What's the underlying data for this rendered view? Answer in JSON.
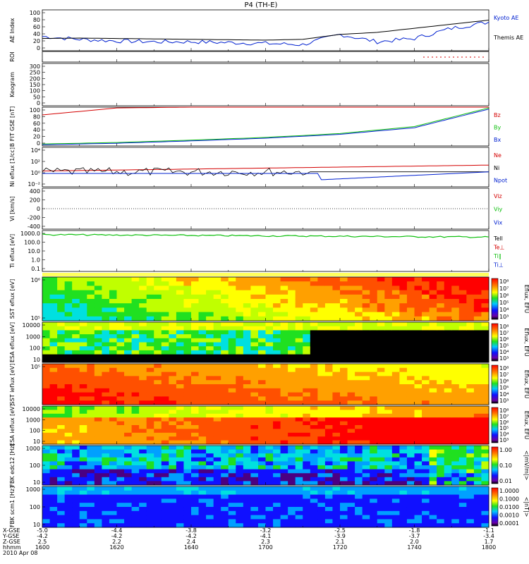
{
  "title": "P4 (TH-E)",
  "colors": {
    "red": "#d40000",
    "green": "#10c010",
    "blue": "#0020d0",
    "black": "#000000"
  },
  "x_ticks": [
    "1600",
    "1620",
    "1640",
    "1700",
    "1720",
    "1740",
    "1800"
  ],
  "footer": {
    "row_labels": [
      "X-GSE",
      "Y-GSE",
      "Z-GSE",
      "hhmm",
      "2010 Apr 08"
    ],
    "columns": [
      [
        "-5.0",
        "-4.2",
        "2.5",
        "1600"
      ],
      [
        "-4.4",
        "-4.2",
        "2.2",
        "1620"
      ],
      [
        "-3.8",
        "-4.2",
        "2.4",
        "1640"
      ],
      [
        "-3.2",
        "-4.1",
        "2.3",
        "1700"
      ],
      [
        "-2.5",
        "-3.9",
        "2.1",
        "1720"
      ],
      [
        "-1.8",
        "-3.7",
        "2.0",
        "1740"
      ],
      [
        "-1.1",
        "-3.4",
        "1.7",
        "1800"
      ]
    ]
  },
  "chart_data": [
    {
      "type": "line",
      "ylabel": "AE Index",
      "ylim": [
        0,
        100
      ],
      "ytick_labels": [
        "100",
        "80",
        "60",
        "40",
        "20",
        "0"
      ],
      "x": [
        "1600",
        "1610",
        "1620",
        "1630",
        "1640",
        "1650",
        "1700",
        "1710",
        "1720",
        "1730",
        "1740",
        "1750",
        "1800"
      ],
      "series": [
        {
          "name": "Kyoto AE",
          "color": "blue",
          "values": [
            35,
            28,
            24,
            22,
            22,
            20,
            18,
            15,
            40,
            22,
            30,
            55,
            70
          ]
        },
        {
          "name": "Themis AE",
          "color": "black",
          "values": [
            30,
            31,
            30,
            29,
            28,
            27,
            26,
            28,
            40,
            45,
            55,
            65,
            75
          ]
        }
      ]
    },
    {
      "type": "line",
      "ylabel": "ROI",
      "ytick_labels": [],
      "series": []
    },
    {
      "type": "line",
      "ylabel": "Keogram",
      "ylim": [
        0,
        300
      ],
      "ytick_labels": [
        "300",
        "250",
        "200",
        "150",
        "100",
        "50",
        "0"
      ],
      "series": []
    },
    {
      "type": "line",
      "ylabel": "B FIT GSE [nT]",
      "ylim": [
        0,
        100
      ],
      "ytick_labels": [
        "100",
        "80",
        "60",
        "40",
        "20",
        "0"
      ],
      "x": [
        "1600",
        "1620",
        "1640",
        "1700",
        "1720",
        "1740",
        "1800"
      ],
      "series": [
        {
          "name": "Bz",
          "color": "red",
          "values": [
            80,
            98,
            100,
            100,
            100,
            100,
            100
          ]
        },
        {
          "name": "By",
          "color": "green",
          "values": [
            5,
            9,
            15,
            22,
            32,
            50,
            98
          ]
        },
        {
          "name": "Bx",
          "color": "blue",
          "values": [
            3,
            7,
            13,
            20,
            30,
            47,
            95
          ]
        }
      ]
    },
    {
      "type": "line",
      "ylabel": "Ni eflux [1/cc]",
      "ytick_labels": [
        "10⁴",
        "10²",
        "10⁰",
        "10⁻²"
      ],
      "series": [
        {
          "name": "Ne",
          "color": "red"
        },
        {
          "name": "Ni",
          "color": "black"
        },
        {
          "name": "Npot",
          "color": "blue"
        }
      ]
    },
    {
      "type": "line",
      "ylabel": "Vi [km/s]",
      "ylim": [
        -500,
        500
      ],
      "ytick_labels": [
        "400",
        "200",
        "0",
        "-200",
        "-400"
      ],
      "series": [
        {
          "name": "Viz",
          "color": "red"
        },
        {
          "name": "Viy",
          "color": "green"
        },
        {
          "name": "Vix",
          "color": "blue"
        }
      ]
    },
    {
      "type": "line",
      "ylabel": "Ti eflux [eV]",
      "ytick_labels": [
        "1000.0",
        "100.0",
        "10.0",
        "1.0",
        "0.1"
      ],
      "series": [
        {
          "name": "Tell",
          "color": "black"
        },
        {
          "name": "Te⊥",
          "color": "red"
        },
        {
          "name": "Ti∥",
          "color": "green"
        },
        {
          "name": "Ti⊥",
          "color": "blue"
        }
      ]
    },
    {
      "type": "heatmap",
      "ylabel": "SST eflux [eV]",
      "ytick_labels": [
        "10⁶",
        "10⁵"
      ],
      "colorbar_label": "Eflux, EFU",
      "colorbar_ticks": [
        "10⁸",
        "10⁷",
        "10⁶",
        "10⁵",
        "10⁴",
        "10³"
      ]
    },
    {
      "type": "heatmap",
      "ylabel": "ESA eflux [eV]",
      "ytick_labels": [
        "10000",
        "1000",
        "100",
        "10"
      ],
      "colorbar_label": "Eflux, EFU",
      "colorbar_ticks": [
        "10⁸",
        "10⁷",
        "10⁶",
        "10⁵",
        "10⁴",
        "10³"
      ]
    },
    {
      "type": "heatmap",
      "ylabel": "SST ieflux [eV]",
      "ytick_labels": [
        "10⁵"
      ],
      "colorbar_label": "Eflux, EFU",
      "colorbar_ticks": [
        "10⁸",
        "10⁷",
        "10⁶",
        "10⁵",
        "10⁴",
        "10³"
      ]
    },
    {
      "type": "heatmap",
      "ylabel": "ESA ieflux [eV]",
      "ytick_labels": [
        "10000",
        "1000",
        "100",
        "10"
      ],
      "colorbar_label": "Eflux, EFU",
      "colorbar_ticks": [
        "10⁸",
        "10⁷",
        "10⁶",
        "10⁵",
        "10⁴",
        "10³"
      ]
    },
    {
      "type": "heatmap",
      "ylabel": "FBK edc12 [Hz]",
      "ytick_labels": [
        "1000",
        "100",
        "10"
      ],
      "colorbar_label": "<|mV/m|>",
      "colorbar_ticks": [
        "1.00",
        "0.10",
        "0.01"
      ]
    },
    {
      "type": "heatmap",
      "ylabel": "FBK scm1 [Hz]",
      "ytick_labels": [
        "1000",
        "100",
        "10"
      ],
      "colorbar_label": "<|nT|>",
      "colorbar_ticks": [
        "1.0000",
        "0.1000",
        "0.0100",
        "0.0010",
        "0.0001"
      ]
    }
  ]
}
